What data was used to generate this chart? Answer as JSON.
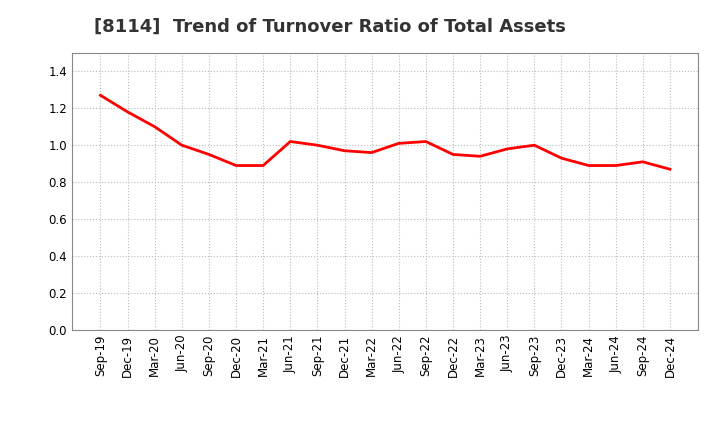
{
  "title": "[8114]  Trend of Turnover Ratio of Total Assets",
  "x_labels": [
    "Sep-19",
    "Dec-19",
    "Mar-20",
    "Jun-20",
    "Sep-20",
    "Dec-20",
    "Mar-21",
    "Jun-21",
    "Sep-21",
    "Dec-21",
    "Mar-22",
    "Jun-22",
    "Sep-22",
    "Dec-22",
    "Mar-23",
    "Jun-23",
    "Sep-23",
    "Dec-23",
    "Mar-24",
    "Jun-24",
    "Sep-24",
    "Dec-24"
  ],
  "y_values": [
    1.27,
    1.18,
    1.1,
    1.0,
    0.95,
    0.89,
    0.89,
    1.02,
    1.0,
    0.97,
    0.96,
    1.01,
    1.02,
    0.95,
    0.94,
    0.98,
    1.0,
    0.93,
    0.89,
    0.89,
    0.91,
    0.87
  ],
  "line_color": "#FF0000",
  "line_width": 2.0,
  "ylim": [
    0.0,
    1.5
  ],
  "yticks": [
    0.0,
    0.2,
    0.4,
    0.6,
    0.8,
    1.0,
    1.2,
    1.4
  ],
  "background_color": "#ffffff",
  "grid_color": "#bbbbbb",
  "title_fontsize": 13,
  "tick_fontsize": 8.5
}
